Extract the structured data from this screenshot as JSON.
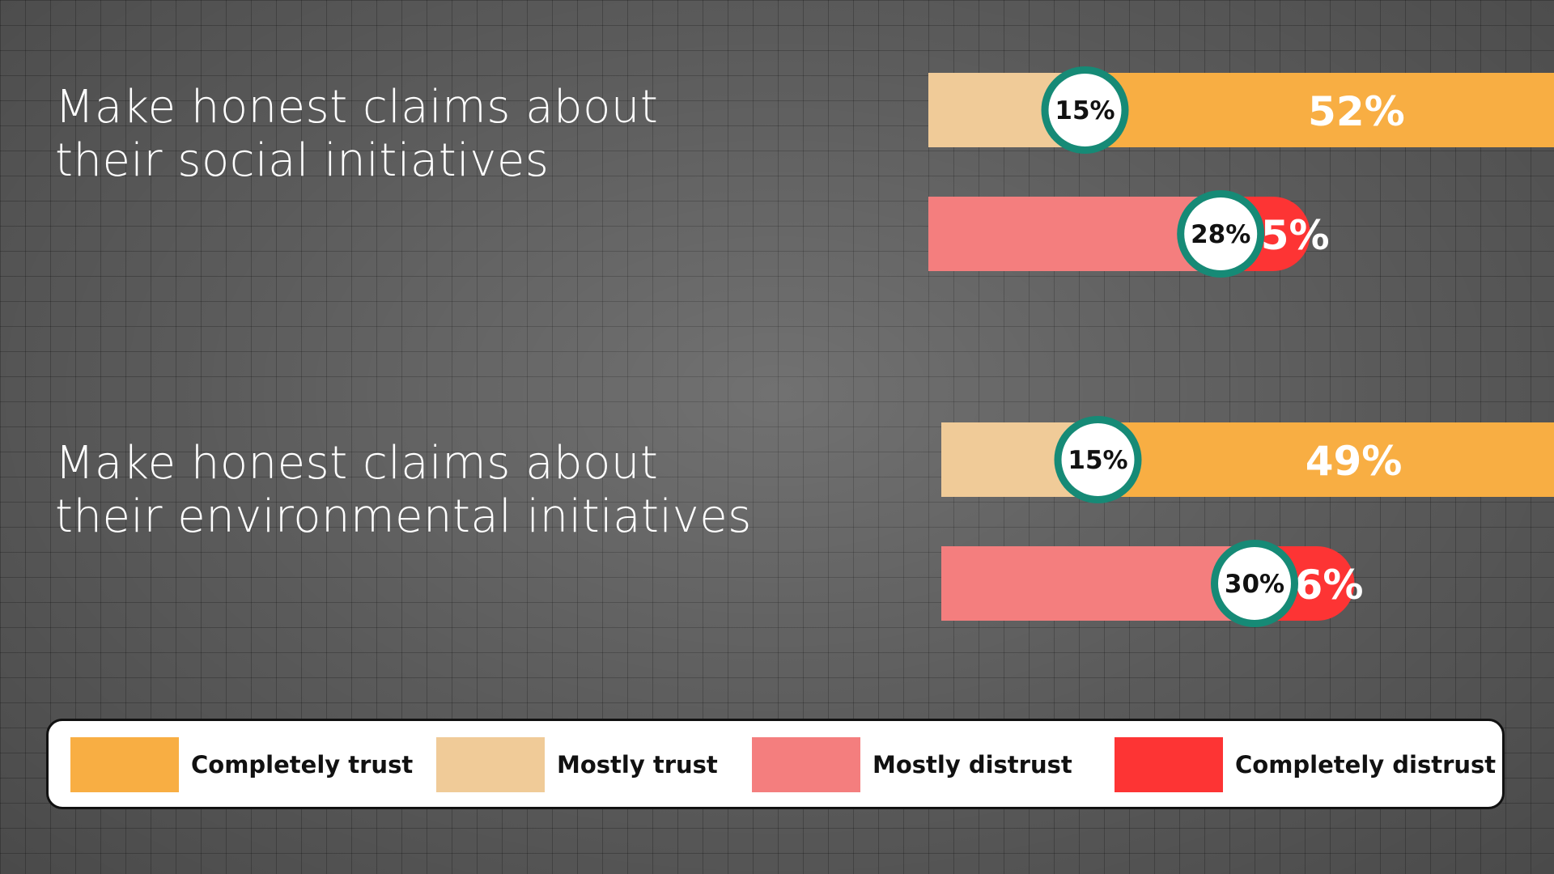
{
  "questions": [
    {
      "line1": "Make honest claims about",
      "line2": "their social initiatives"
    },
    {
      "line1": "Make honest claims about",
      "line2": "their environmental initiatives"
    }
  ],
  "chart_data": {
    "type": "bar",
    "orientation": "horizontal",
    "stacked": true,
    "groups": [
      {
        "question": "Make honest claims about their social initiatives",
        "trust": {
          "Mostly trust": 15,
          "Completely trust": 52
        },
        "distrust": {
          "Mostly distrust": 28,
          "Completely distrust": 5
        }
      },
      {
        "question": "Make honest claims about their environmental initiatives",
        "trust": {
          "Mostly trust": 15,
          "Completely trust": 49
        },
        "distrust": {
          "Mostly distrust": 30,
          "Completely distrust": 6
        }
      }
    ],
    "labels": [
      {
        "mostly_trust": "15%",
        "completely_trust": "52%",
        "mostly_distrust": "28%",
        "completely_distrust": "5%"
      },
      {
        "mostly_trust": "15%",
        "completely_trust": "49%",
        "mostly_distrust": "30%",
        "completely_distrust": "6%"
      }
    ],
    "legend_position": "bottom",
    "grid": false
  },
  "legend": [
    {
      "label": "Completely trust",
      "color": "#f8ae43"
    },
    {
      "label": "Mostly trust",
      "color": "#f0cb98"
    },
    {
      "label": "Mostly distrust",
      "color": "#f47e7e"
    },
    {
      "label": "Completely distrust",
      "color": "#fd3434"
    }
  ],
  "colors": {
    "completely_trust": "#f8ae43",
    "mostly_trust": "#f0cb98",
    "mostly_distrust": "#f47e7e",
    "completely_distrust": "#fd3434",
    "badge_ring": "#168a76",
    "badge_fill": "#ffffff"
  }
}
